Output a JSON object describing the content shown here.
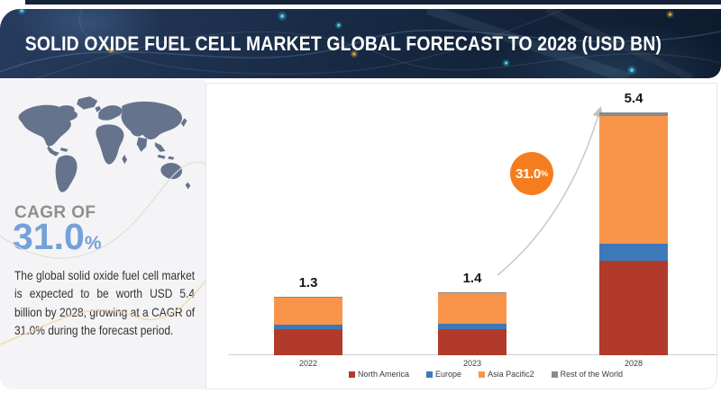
{
  "header": {
    "title": "SOLID OXIDE FUEL CELL MARKET GLOBAL FORECAST TO 2028 (USD BN)"
  },
  "sidebar": {
    "cagr_label": "CAGR OF",
    "cagr_value": "31.0",
    "cagr_unit": "%",
    "description": "The global solid oxide fuel cell market is expected to be worth USD 5.4 billion by 2028, growing at a CAGR of 31.0% during the forecast period."
  },
  "badge": {
    "value": "31.0",
    "unit": "%"
  },
  "chart_data": {
    "type": "bar",
    "stacked": true,
    "title": "Solid Oxide Fuel Cell Market Global Forecast to 2028 (USD BN)",
    "units": "USD BN",
    "categories": [
      "2022",
      "2023",
      "2028"
    ],
    "totals": [
      1.3,
      1.4,
      5.4
    ],
    "total_labels": [
      "1.3",
      "1.4",
      "5.4"
    ],
    "series": [
      {
        "name": "North America",
        "color": "#b23a2b",
        "values": [
          0.58,
          0.58,
          2.1
        ]
      },
      {
        "name": "Europe",
        "color": "#3d79b8",
        "values": [
          0.1,
          0.12,
          0.38
        ]
      },
      {
        "name": "Asia Pacific2",
        "color": "#f8954a",
        "values": [
          0.6,
          0.68,
          2.85
        ]
      },
      {
        "name": "Rest of the World",
        "color": "#8a8a8a",
        "values": [
          0.02,
          0.02,
          0.07
        ]
      }
    ],
    "xlabel": "",
    "ylabel": "",
    "grid": false,
    "legend_position": "bottom",
    "annotations": {
      "cagr_badge": "31.0%",
      "growth_arrow_from": "2023",
      "growth_arrow_to": "2028"
    }
  },
  "colors": {
    "banner_bg": "#182a45",
    "sidebar_bg": "#f4f4f6",
    "map_fill": "#66738c",
    "cagr_blue": "#74a1d8",
    "badge_orange": "#f57d1f",
    "axis_line": "#cfcfcf",
    "arrow_gray": "#c8c8c8",
    "deco_yellow": "#f3d49c",
    "deco_gray": "#d9d9d9"
  }
}
